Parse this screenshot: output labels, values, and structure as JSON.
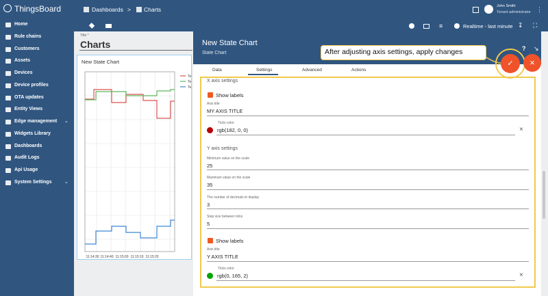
{
  "header": {
    "logo": "ThingsBoard",
    "breadcrumbs": [
      "Dashboards",
      ">",
      "Charts"
    ],
    "user": {
      "name": "John Smith",
      "role": "Tenant administrator"
    }
  },
  "sidebar": {
    "items": [
      "Home",
      "Rule chains",
      "Customers",
      "Assets",
      "Devices",
      "Device profiles",
      "OTA updates",
      "Entity Views",
      "Edge management",
      "Widgets Library",
      "Dashboards",
      "Audit Logs",
      "Api Usage",
      "System Settings"
    ]
  },
  "toolbar": {
    "timewindow": "Realtime - last minute"
  },
  "dashboard": {
    "title_label": "Title *",
    "title": "Charts"
  },
  "widget": {
    "title": "New State Chart",
    "legend": [
      "Te",
      "Te",
      "Te"
    ],
    "x_ticks": [
      "11:14:30",
      "11:14:40",
      "11:15:00",
      "11:15:10",
      "11:15:20"
    ]
  },
  "panel": {
    "title": "New State Chart",
    "subtitle": "State Chart",
    "tabs": [
      "Data",
      "Settings",
      "Advanced",
      "Actions"
    ],
    "x_axis": {
      "heading": "X axis settings",
      "show_labels": "Show labels",
      "axis_title_label": "Axis title",
      "axis_title": "MY AXIS TITLE",
      "ticks_color_label": "Ticks color",
      "ticks_color": "rgb(182, 0, 0)"
    },
    "y_axis": {
      "heading": "Y axis settings",
      "min_label": "Minimum value on the scale",
      "min": "25",
      "max_label": "Maximum value on the scale",
      "max": "35",
      "decimals_label": "The number of decimals to display",
      "decimals": "3",
      "step_label": "Step size between ticks",
      "step": "5",
      "show_labels": "Show labels",
      "axis_title_label": "Axis title",
      "axis_title": "Y AXIS TITLE",
      "ticks_color_label": "Ticks color",
      "ticks_color": "rgb(0, 165, 2)"
    }
  },
  "callout": "After adjusting axis settings, apply changes"
}
